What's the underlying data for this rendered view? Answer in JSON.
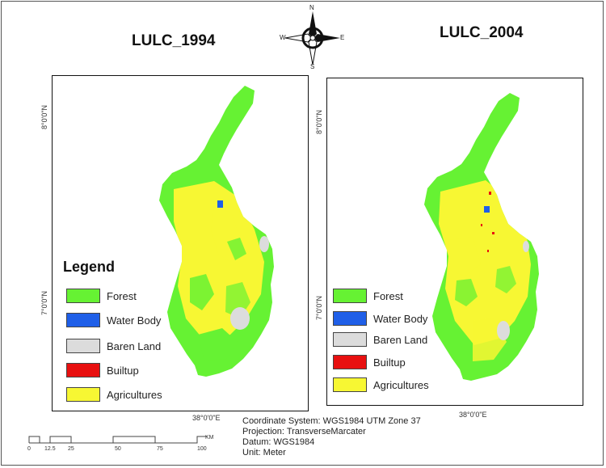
{
  "titles": {
    "left": "LULC_1994",
    "right": "LULC_2004"
  },
  "compass": {
    "n": "N",
    "s": "S",
    "e": "E",
    "w": "W"
  },
  "graticule": {
    "lat_north": "8°0'0\"N",
    "lat_south": "7°0'0\"N",
    "lon": "38°0'0\"E"
  },
  "legend_left": {
    "title": "Legend",
    "items": [
      {
        "label": "Forest",
        "color": "#66f233"
      },
      {
        "label": "Water Body",
        "color": "#1f5fe8"
      },
      {
        "label": "Baren Land",
        "color": "#dcdcdc"
      },
      {
        "label": "Builtup",
        "color": "#e81010"
      },
      {
        "label": "Agricultures",
        "color": "#f7f733"
      }
    ]
  },
  "legend_right": {
    "items": [
      {
        "label": "Forest",
        "color": "#66f233"
      },
      {
        "label": "Water Body",
        "color": "#1f5fe8"
      },
      {
        "label": "Baren Land",
        "color": "#dcdcdc"
      },
      {
        "label": "Builtup",
        "color": "#e81010"
      },
      {
        "label": "Agricultures",
        "color": "#f7f733"
      }
    ]
  },
  "scalebar": {
    "ticks": [
      "0",
      "12.5",
      "25",
      "50",
      "75",
      "100"
    ],
    "unit": "KM"
  },
  "info": {
    "coordinate_system": "Coordinate System: WGS1984 UTM Zone 37",
    "projection": "Projection: TransverseMarcater",
    "datum": "Datum: WGS1984",
    "unit": "Unit: Meter"
  }
}
